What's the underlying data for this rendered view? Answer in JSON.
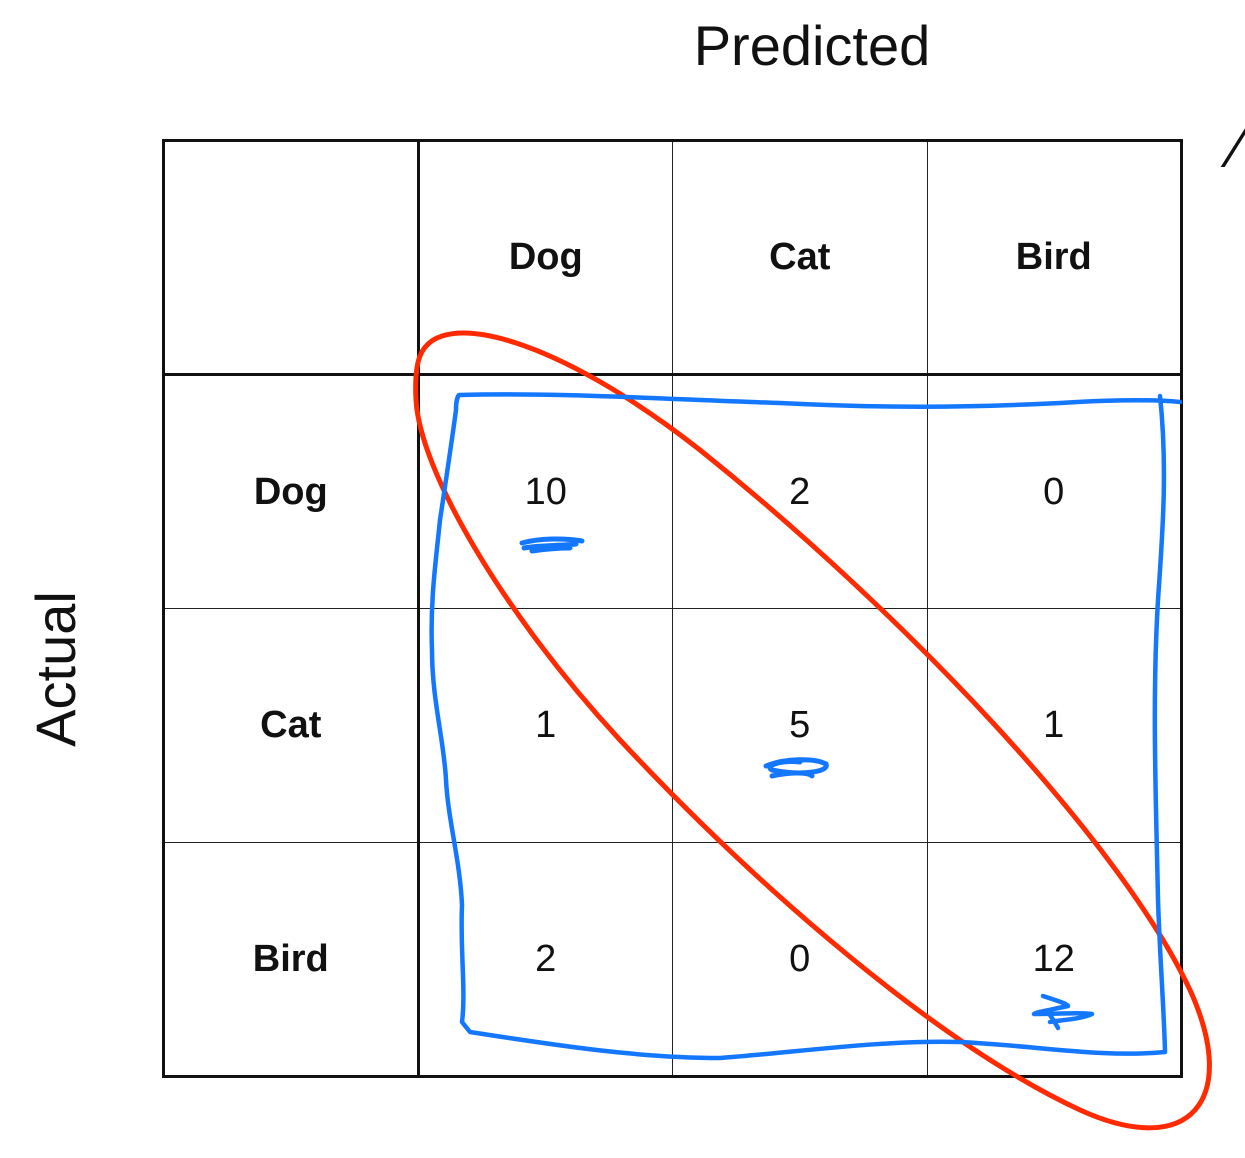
{
  "titles": {
    "predicted": "Predicted",
    "actual": "Actual"
  },
  "matrix": {
    "columns": [
      "Dog",
      "Cat",
      "Bird"
    ],
    "rows": [
      {
        "label": "Dog",
        "values": [
          "10",
          "2",
          "0"
        ]
      },
      {
        "label": "Cat",
        "values": [
          "1",
          "5",
          "1"
        ]
      },
      {
        "label": "Bird",
        "values": [
          "2",
          "0",
          "12"
        ]
      }
    ]
  },
  "annotations": {
    "ellipse_color": "#ff2a00",
    "box_color": "#1477ff",
    "underline_color": "#1477ff"
  }
}
